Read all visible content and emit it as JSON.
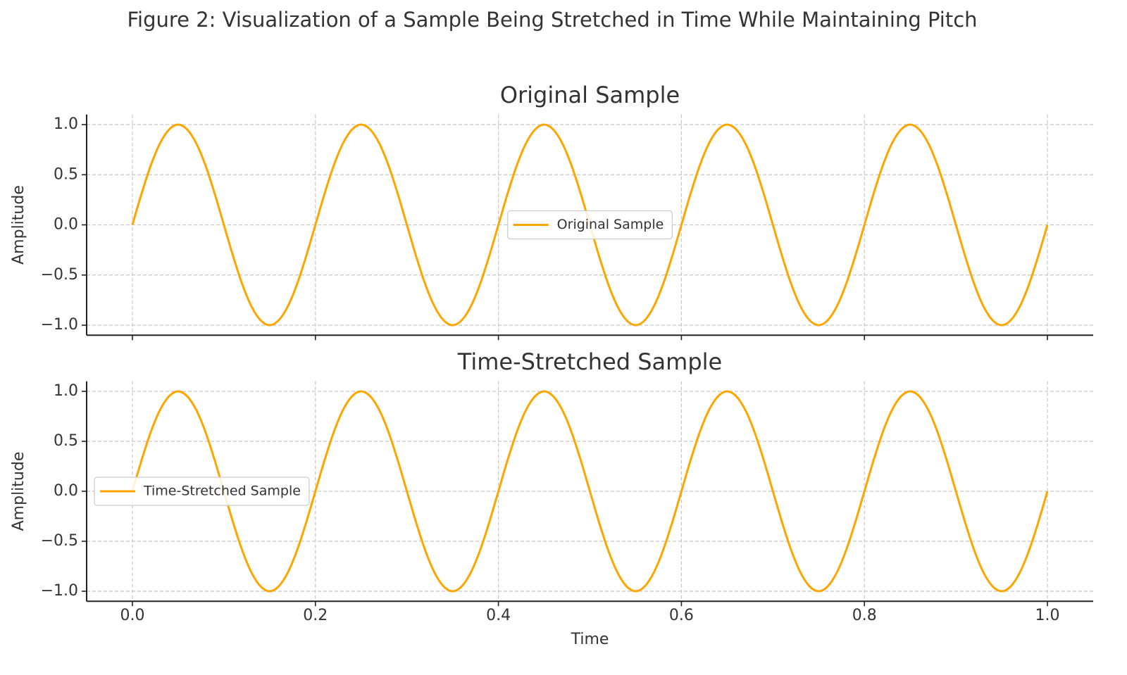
{
  "title": "Figure 2: Visualization of a Sample Being Stretched in Time While Maintaining Pitch",
  "chart_data": [
    {
      "type": "line",
      "title": "Original Sample",
      "ylabel": "Amplitude",
      "x": [
        0,
        0.01,
        0.02,
        0.03,
        0.04,
        0.05,
        0.06,
        0.07,
        0.08,
        0.09,
        0.1,
        0.11,
        0.12,
        0.13,
        0.14,
        0.15,
        0.16,
        0.17,
        0.18,
        0.19,
        0.2,
        0.21,
        0.22,
        0.23,
        0.24,
        0.25,
        0.26,
        0.27,
        0.28,
        0.29,
        0.3,
        0.31,
        0.32,
        0.33,
        0.34,
        0.35,
        0.36,
        0.37,
        0.38,
        0.39,
        0.4,
        0.41,
        0.42,
        0.43,
        0.44,
        0.45,
        0.46,
        0.47,
        0.48,
        0.49,
        0.5,
        0.51,
        0.52,
        0.53,
        0.54,
        0.55,
        0.56,
        0.57,
        0.58,
        0.59,
        0.6,
        0.61,
        0.62,
        0.63,
        0.64,
        0.65,
        0.66,
        0.67,
        0.68,
        0.69,
        0.7,
        0.71,
        0.72,
        0.73,
        0.74,
        0.75,
        0.76,
        0.77,
        0.78,
        0.79,
        0.8,
        0.81,
        0.82,
        0.83,
        0.84,
        0.85,
        0.86,
        0.87,
        0.88,
        0.89,
        0.9,
        0.91,
        0.92,
        0.93,
        0.94,
        0.95,
        0.96,
        0.97,
        0.98,
        0.99,
        1
      ],
      "series": [
        {
          "name": "Original Sample",
          "color": "#FFA500",
          "values": [
            0,
            0.31,
            0.59,
            0.81,
            0.95,
            1,
            0.95,
            0.81,
            0.59,
            0.31,
            0,
            -0.31,
            -0.59,
            -0.81,
            -0.95,
            -1,
            -0.95,
            -0.81,
            -0.59,
            -0.31,
            0,
            0.31,
            0.59,
            0.81,
            0.95,
            1,
            0.95,
            0.81,
            0.59,
            0.31,
            0,
            -0.31,
            -0.59,
            -0.81,
            -0.95,
            -1,
            -0.95,
            -0.81,
            -0.59,
            -0.31,
            0,
            0.31,
            0.59,
            0.81,
            0.95,
            1,
            0.95,
            0.81,
            0.59,
            0.31,
            0,
            -0.31,
            -0.59,
            -0.81,
            -0.95,
            -1,
            -0.95,
            -0.81,
            -0.59,
            -0.31,
            0,
            0.31,
            0.59,
            0.81,
            0.95,
            1,
            0.95,
            0.81,
            0.59,
            0.31,
            0,
            -0.31,
            -0.59,
            -0.81,
            -0.95,
            -1,
            -0.95,
            -0.81,
            -0.59,
            -0.31,
            0,
            0.31,
            0.59,
            0.81,
            0.95,
            1,
            0.95,
            0.81,
            0.59,
            0.31,
            0,
            -0.31,
            -0.59,
            -0.81,
            -0.95,
            -1,
            -0.95,
            -0.81,
            -0.59,
            -0.31,
            0
          ]
        }
      ],
      "xlim": [
        -0.05,
        1.05
      ],
      "ylim": [
        -1.1,
        1.1
      ],
      "xticks": [
        0,
        0.2,
        0.4,
        0.6,
        0.8,
        1
      ],
      "yticks": [
        {
          "value": -1,
          "label": "−1.0"
        },
        {
          "value": -0.5,
          "label": "−0.5"
        },
        {
          "value": 0,
          "label": "0.0"
        },
        {
          "value": 0.5,
          "label": "0.5"
        },
        {
          "value": 1,
          "label": "1.0"
        }
      ],
      "grid": true,
      "legend": "center"
    },
    {
      "type": "line",
      "title": "Time-Stretched Sample",
      "xlabel": "Time",
      "ylabel": "Amplitude",
      "x": [
        0,
        0.01,
        0.02,
        0.03,
        0.04,
        0.05,
        0.06,
        0.07,
        0.08,
        0.09,
        0.1,
        0.11,
        0.12,
        0.13,
        0.14,
        0.15,
        0.16,
        0.17,
        0.18,
        0.19,
        0.2,
        0.21,
        0.22,
        0.23,
        0.24,
        0.25,
        0.26,
        0.27,
        0.28,
        0.29,
        0.3,
        0.31,
        0.32,
        0.33,
        0.34,
        0.35,
        0.36,
        0.37,
        0.38,
        0.39,
        0.4,
        0.41,
        0.42,
        0.43,
        0.44,
        0.45,
        0.46,
        0.47,
        0.48,
        0.49,
        0.5,
        0.51,
        0.52,
        0.53,
        0.54,
        0.55,
        0.56,
        0.57,
        0.58,
        0.59,
        0.6,
        0.61,
        0.62,
        0.63,
        0.64,
        0.65,
        0.66,
        0.67,
        0.68,
        0.69,
        0.7,
        0.71,
        0.72,
        0.73,
        0.74,
        0.75,
        0.76,
        0.77,
        0.78,
        0.79,
        0.8,
        0.81,
        0.82,
        0.83,
        0.84,
        0.85,
        0.86,
        0.87,
        0.88,
        0.89,
        0.9,
        0.91,
        0.92,
        0.93,
        0.94,
        0.95,
        0.96,
        0.97,
        0.98,
        0.99,
        1
      ],
      "series": [
        {
          "name": "Time-Stretched Sample",
          "color": "#FFA500",
          "values": [
            0,
            0.31,
            0.59,
            0.81,
            0.95,
            1,
            0.95,
            0.81,
            0.59,
            0.31,
            0,
            -0.31,
            -0.59,
            -0.81,
            -0.95,
            -1,
            -0.95,
            -0.81,
            -0.59,
            -0.31,
            0,
            0.31,
            0.59,
            0.81,
            0.95,
            1,
            0.95,
            0.81,
            0.59,
            0.31,
            0,
            -0.31,
            -0.59,
            -0.81,
            -0.95,
            -1,
            -0.95,
            -0.81,
            -0.59,
            -0.31,
            0,
            0.31,
            0.59,
            0.81,
            0.95,
            1,
            0.95,
            0.81,
            0.59,
            0.31,
            0,
            -0.31,
            -0.59,
            -0.81,
            -0.95,
            -1,
            -0.95,
            -0.81,
            -0.59,
            -0.31,
            0,
            0.31,
            0.59,
            0.81,
            0.95,
            1,
            0.95,
            0.81,
            0.59,
            0.31,
            0,
            -0.31,
            -0.59,
            -0.81,
            -0.95,
            -1,
            -0.95,
            -0.81,
            -0.59,
            -0.31,
            0,
            0.31,
            0.59,
            0.81,
            0.95,
            1,
            0.95,
            0.81,
            0.59,
            0.31,
            0,
            -0.31,
            -0.59,
            -0.81,
            -0.95,
            -1,
            -0.95,
            -0.81,
            -0.59,
            -0.31,
            0
          ]
        }
      ],
      "xlim": [
        -0.05,
        1.05
      ],
      "ylim": [
        -1.1,
        1.1
      ],
      "xticks": [
        {
          "value": 0,
          "label": "0.0"
        },
        {
          "value": 0.2,
          "label": "0.2"
        },
        {
          "value": 0.4,
          "label": "0.4"
        },
        {
          "value": 0.6,
          "label": "0.6"
        },
        {
          "value": 0.8,
          "label": "0.8"
        },
        {
          "value": 1,
          "label": "1.0"
        }
      ],
      "yticks": [
        {
          "value": -1,
          "label": "−1.0"
        },
        {
          "value": -0.5,
          "label": "−0.5"
        },
        {
          "value": 0,
          "label": "0.0"
        },
        {
          "value": 0.5,
          "label": "0.5"
        },
        {
          "value": 1,
          "label": "1.0"
        }
      ],
      "grid": true,
      "legend": "center left"
    }
  ]
}
